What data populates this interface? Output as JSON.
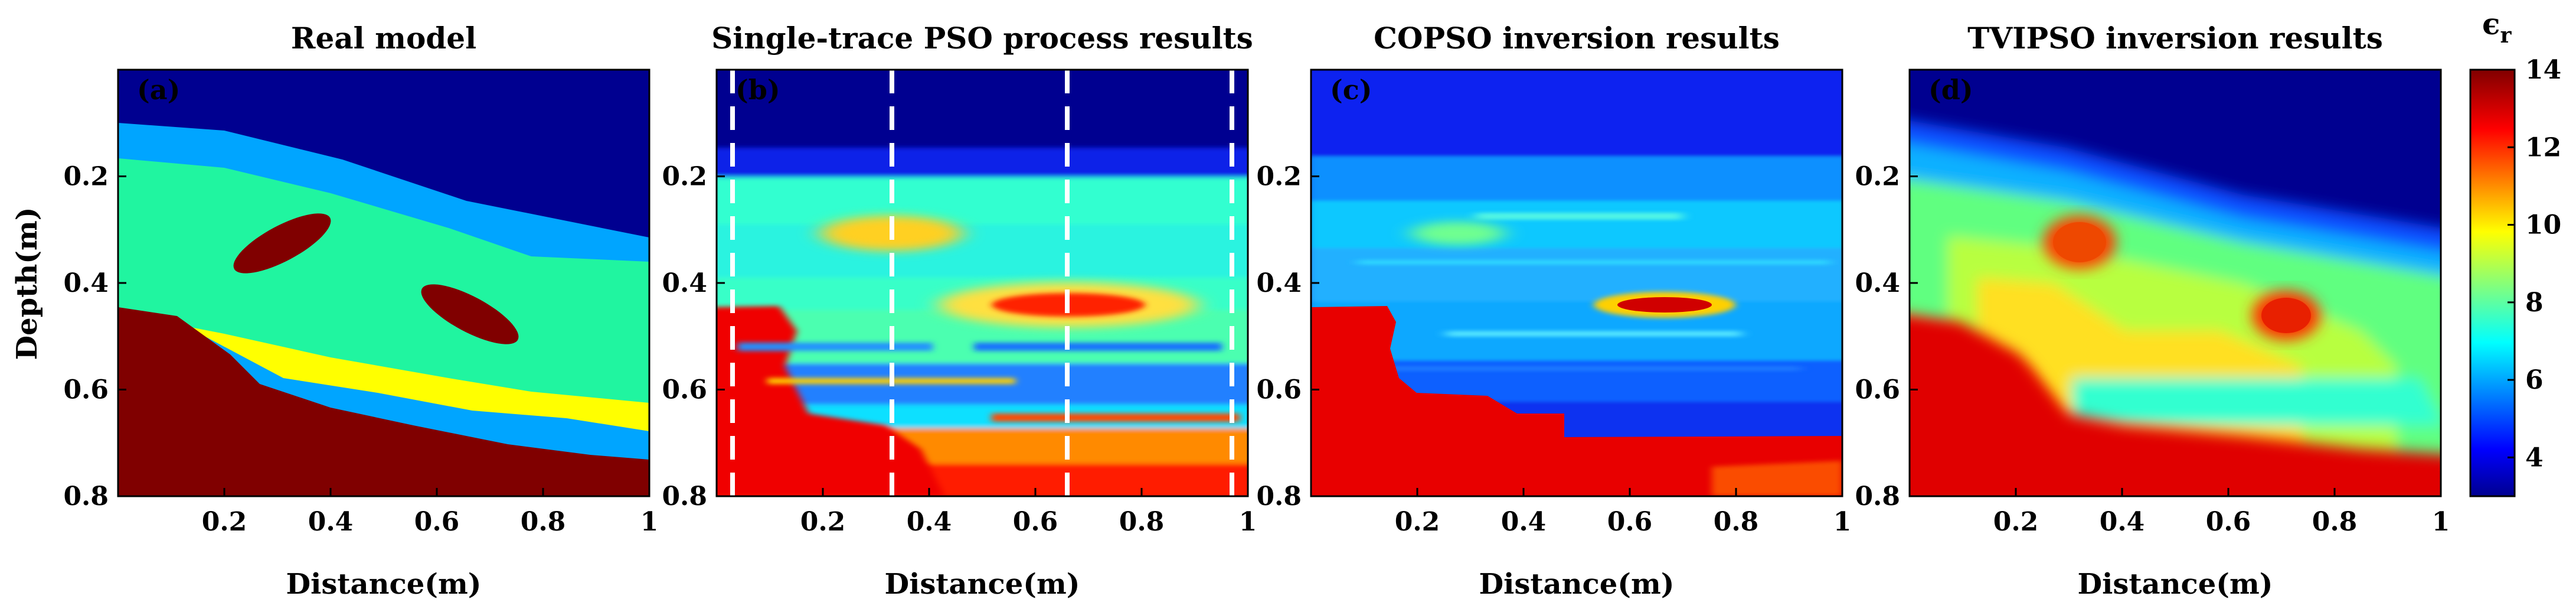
{
  "figure": {
    "colorbar": {
      "label": "ϵ",
      "label_sub": "r",
      "range": [
        3,
        14
      ],
      "ticks": [
        4,
        6,
        8,
        10,
        12,
        14
      ],
      "colormap": "jet"
    },
    "panels": [
      {
        "tag": "(a)",
        "title": "Real model",
        "xlabel": "Distance(m)",
        "ylabel": "Depth(m)"
      },
      {
        "tag": "(b)",
        "title": "Single-trace PSO process results",
        "xlabel": "Distance(m)",
        "ylabel": ""
      },
      {
        "tag": "(c)",
        "title": "COPSO inversion results",
        "xlabel": "Distance(m)",
        "ylabel": ""
      },
      {
        "tag": "(d)",
        "title": "TVIPSO inversion results",
        "xlabel": "Distance(m)",
        "ylabel": ""
      }
    ]
  },
  "chart_data": [
    {
      "type": "heatmap",
      "title": "Real model",
      "xlabel": "Distance(m)",
      "ylabel": "Depth(m)",
      "xlim": [
        0,
        1
      ],
      "ylim": [
        0.8,
        0
      ],
      "xticks": [
        0.2,
        0.4,
        0.6,
        0.8,
        1
      ],
      "xtick_labels": [
        "0.2",
        "0.4",
        "0.6",
        "0.8",
        "1"
      ],
      "yticks": [
        0.2,
        0.4,
        0.6,
        0.8
      ],
      "ytick_labels": [
        "0.2",
        "0.4",
        "0.6",
        "0.8"
      ],
      "layers_permittivity": {
        "air_top": 3,
        "layer_1": 6,
        "layer_2": 8,
        "layer_3": 10,
        "layer_4": 6,
        "bedrock": 14,
        "anomalies": 14
      },
      "anomalies": [
        {
          "center_x": 0.3,
          "center_depth": 0.32
        },
        {
          "center_x": 0.66,
          "center_depth": 0.46
        }
      ]
    },
    {
      "type": "heatmap",
      "title": "Single-trace PSO process results",
      "xlabel": "Distance(m)",
      "ylabel": "",
      "xlim": [
        0,
        1
      ],
      "ylim": [
        0.8,
        0
      ],
      "xticks": [
        0.2,
        0.4,
        0.6,
        0.8,
        1
      ],
      "xtick_labels": [
        "0.2",
        "0.4",
        "0.6",
        "0.8",
        "1"
      ],
      "yticks": [
        0.2,
        0.4,
        0.6,
        0.8
      ],
      "ytick_labels": [
        "0.2",
        "0.4",
        "0.6",
        "0.8"
      ],
      "trace_positions": [
        0.03,
        0.33,
        0.66,
        0.97
      ]
    },
    {
      "type": "heatmap",
      "title": "COPSO inversion results",
      "xlabel": "Distance(m)",
      "ylabel": "",
      "xlim": [
        0,
        1
      ],
      "ylim": [
        0.8,
        0
      ],
      "xticks": [
        0.2,
        0.4,
        0.6,
        0.8,
        1
      ],
      "xtick_labels": [
        "0.2",
        "0.4",
        "0.6",
        "0.8",
        "1"
      ],
      "yticks": [
        0.2,
        0.4,
        0.6,
        0.8
      ],
      "ytick_labels": [
        "0.2",
        "0.4",
        "0.6",
        "0.8"
      ]
    },
    {
      "type": "heatmap",
      "title": "TVIPSO inversion results",
      "xlabel": "Distance(m)",
      "ylabel": "",
      "xlim": [
        0,
        1
      ],
      "ylim": [
        0.8,
        0
      ],
      "xticks": [
        0.2,
        0.4,
        0.6,
        0.8,
        1
      ],
      "xtick_labels": [
        "0.2",
        "0.4",
        "0.6",
        "0.8",
        "1"
      ],
      "yticks": [
        0.2,
        0.4,
        0.6,
        0.8
      ],
      "ytick_labels": [
        "0.2",
        "0.4",
        "0.6",
        "0.8"
      ]
    }
  ]
}
